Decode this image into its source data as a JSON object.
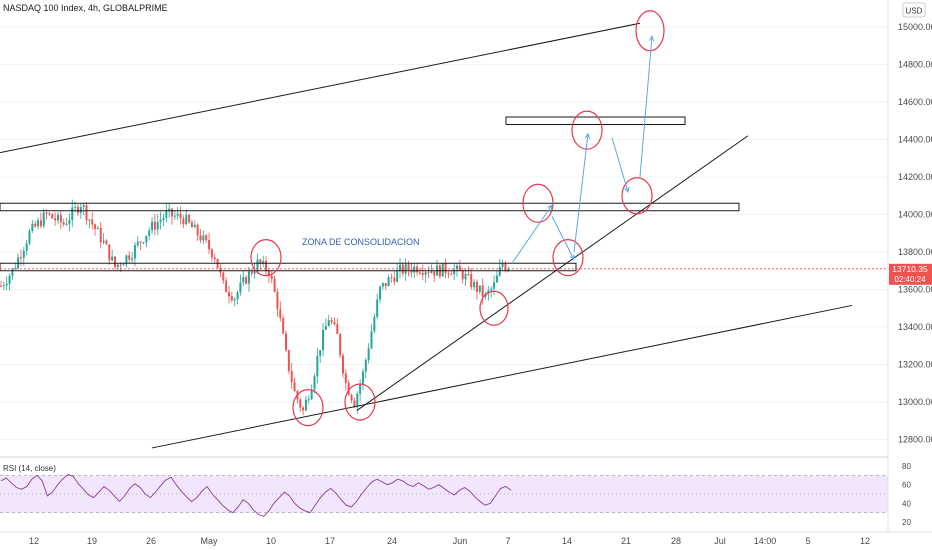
{
  "header": {
    "title": "NASDAQ 100 Index, 4h, GLOBALPRIME",
    "currency": "USD"
  },
  "annotation": {
    "zone_label": "ZONA DE CONSOLIDACION"
  },
  "price_tag": {
    "value": "13710.35",
    "countdown": "02:40:24"
  },
  "rsi": {
    "label": "RSI (14, close)"
  },
  "colors": {
    "up": "#26a69a",
    "down": "#ef5350",
    "trend": "#1a1a1a",
    "circle": "#e53950",
    "arrow": "#5aa9e6",
    "rsi": "#8e3a9e",
    "rsi_band": "#f1e6fb",
    "zone_text": "#2f5fb3",
    "price_line": "#ef5350"
  },
  "chart_data": [
    {
      "type": "candlestick",
      "title": "NASDAQ 100 Index, 4h, GLOBALPRIME",
      "y_ticks": [
        12800,
        13000,
        13200,
        13400,
        13600,
        13800,
        14000,
        14200,
        14400,
        14600,
        14800,
        15000
      ],
      "x_tick_labels": [
        "12",
        "19",
        "26",
        "May",
        "10",
        "17",
        "24",
        "Jun",
        "7",
        "14",
        "21",
        "28",
        "Jul",
        "12",
        "19"
      ],
      "x_tick_labels_after_gap": [
        "14:00",
        "5"
      ],
      "last_price": 13710.35,
      "price_path_anchors": [
        [
          0,
          13620
        ],
        [
          4,
          13700
        ],
        [
          10,
          13900
        ],
        [
          16,
          14000
        ],
        [
          22,
          13950
        ],
        [
          28,
          14060
        ],
        [
          32,
          13950
        ],
        [
          36,
          13850
        ],
        [
          40,
          13720
        ],
        [
          46,
          13800
        ],
        [
          52,
          13920
        ],
        [
          58,
          14000
        ],
        [
          64,
          13980
        ],
        [
          70,
          13880
        ],
        [
          75,
          13780
        ],
        [
          78,
          13620
        ],
        [
          82,
          13560
        ],
        [
          86,
          13660
        ],
        [
          90,
          13740
        ],
        [
          94,
          13700
        ],
        [
          97,
          13520
        ],
        [
          100,
          13250
        ],
        [
          103,
          13050
        ],
        [
          106,
          12950
        ],
        [
          109,
          13100
        ],
        [
          112,
          13300
        ],
        [
          115,
          13450
        ],
        [
          118,
          13350
        ],
        [
          121,
          13100
        ],
        [
          124,
          13000
        ],
        [
          127,
          13150
        ],
        [
          130,
          13380
        ],
        [
          133,
          13600
        ],
        [
          136,
          13650
        ],
        [
          140,
          13700
        ],
        [
          146,
          13720
        ],
        [
          152,
          13700
        ],
        [
          158,
          13710
        ],
        [
          162,
          13680
        ],
        [
          166,
          13620
        ],
        [
          170,
          13560
        ],
        [
          173,
          13620
        ],
        [
          176,
          13740
        ],
        [
          178,
          13710
        ]
      ],
      "key_levels": [
        {
          "name": "resistance",
          "low": 14020,
          "high": 14060
        },
        {
          "name": "consolidation",
          "low": 13700,
          "high": 13740
        },
        {
          "name": "target",
          "low": 14480,
          "high": 14520
        }
      ],
      "projection_points": [
        13740,
        14050,
        13760,
        14430,
        14120,
        14950
      ]
    },
    {
      "type": "line",
      "title": "RSI (14, close)",
      "y_ticks": [
        20,
        40,
        60,
        80
      ],
      "band": [
        30,
        70
      ],
      "values": [
        64,
        67,
        62,
        57,
        55,
        58,
        66,
        70,
        64,
        48,
        52,
        60,
        66,
        71,
        69,
        61,
        55,
        49,
        46,
        52,
        58,
        54,
        48,
        42,
        48,
        56,
        61,
        57,
        50,
        46,
        52,
        59,
        65,
        68,
        60,
        53,
        47,
        42,
        46,
        53,
        58,
        50,
        44,
        38,
        33,
        30,
        36,
        44,
        40,
        33,
        28,
        26,
        32,
        40,
        46,
        52,
        48,
        40,
        35,
        32,
        30,
        38,
        46,
        52,
        56,
        51,
        44,
        38,
        36,
        42,
        50,
        57,
        63,
        66,
        63,
        60,
        62,
        66,
        64,
        60,
        58,
        62,
        59,
        55,
        57,
        60,
        56,
        52,
        49,
        54,
        57,
        53,
        47,
        42,
        38,
        40,
        48,
        56,
        58,
        54
      ]
    }
  ]
}
